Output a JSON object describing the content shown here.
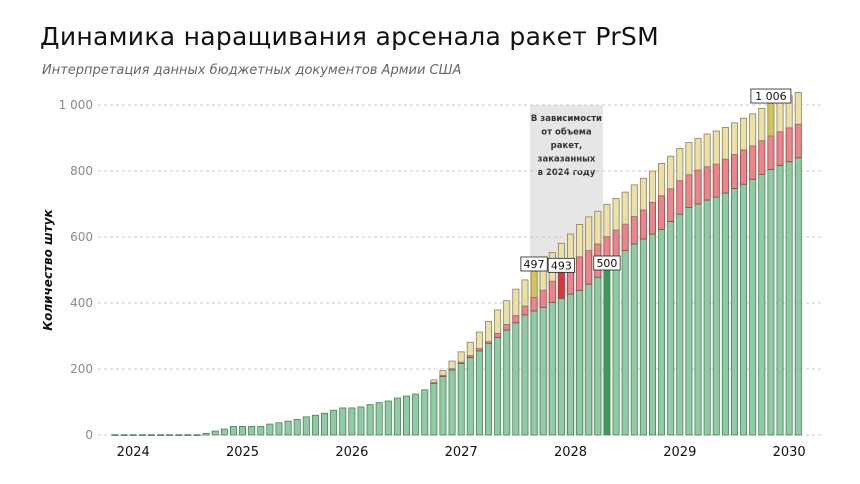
{
  "title": "Динамика наращивания арсенала ракет PrSM",
  "subtitle": "Интерпретация данных бюджетных документов Армии США",
  "chart_data": {
    "type": "bar",
    "stacked": true,
    "title": "Динамика наращивания арсенала ракет PrSM",
    "subtitle": "Интерпретация данных бюджетных документов Армии США",
    "xlabel": "",
    "ylabel": "Количество штук",
    "ylim": [
      0,
      1050
    ],
    "yticks": [
      0,
      200,
      400,
      600,
      800,
      1000
    ],
    "ytick_labels": [
      "0",
      "200",
      "400",
      "600",
      "800",
      "1 000"
    ],
    "grid": "horizontal dashed",
    "legend": "none",
    "year_labels": [
      "2024",
      "2025",
      "2026",
      "2027",
      "2028",
      "2029",
      "2030"
    ],
    "x": [
      "2024-01",
      "2024-02",
      "2024-03",
      "2024-04",
      "2024-05",
      "2024-06",
      "2024-07",
      "2024-08",
      "2024-09",
      "2024-10",
      "2024-11",
      "2024-12",
      "2025-01",
      "2025-02",
      "2025-03",
      "2025-04",
      "2025-05",
      "2025-06",
      "2025-07",
      "2025-08",
      "2025-09",
      "2025-10",
      "2025-11",
      "2025-12",
      "2026-01",
      "2026-02",
      "2026-03",
      "2026-04",
      "2026-05",
      "2026-06",
      "2026-07",
      "2026-08",
      "2026-09",
      "2026-10",
      "2026-11",
      "2026-12",
      "2027-01",
      "2027-02",
      "2027-03",
      "2027-04",
      "2027-05",
      "2027-06",
      "2027-07",
      "2027-08",
      "2027-09",
      "2027-10",
      "2027-11",
      "2027-12",
      "2028-01",
      "2028-02",
      "2028-03",
      "2028-04",
      "2028-05",
      "2028-06",
      "2028-07",
      "2028-08",
      "2028-09",
      "2028-10",
      "2028-11",
      "2028-12",
      "2029-01",
      "2029-02",
      "2029-03",
      "2029-04",
      "2029-05",
      "2029-06",
      "2029-07",
      "2029-08",
      "2029-09",
      "2029-10",
      "2029-11",
      "2029-12",
      "2030-01",
      "2030-02",
      "2030-03",
      "2030-04"
    ],
    "series": [
      {
        "color": "#8fcca3",
        "stroke": "#4f7d5c",
        "highlight": "#3d9a57",
        "values": [
          1,
          1,
          1,
          1,
          1,
          1,
          1,
          1,
          1,
          1,
          5,
          12,
          18,
          26,
          26,
          26,
          26,
          33,
          37,
          42,
          47,
          55,
          60,
          66,
          75,
          82,
          82,
          85,
          92,
          98,
          103,
          112,
          118,
          124,
          137,
          157,
          177,
          197,
          217,
          235,
          255,
          278,
          296,
          318,
          340,
          364,
          376,
          387,
          402,
          414,
          427,
          438,
          457,
          478,
          500,
          535,
          559,
          579,
          594,
          609,
          623,
          647,
          669,
          689,
          700,
          712,
          721,
          733,
          747,
          760,
          775,
          790,
          805,
          817,
          828,
          840
        ]
      },
      {
        "color": "#e8868b",
        "stroke": "#8b4646",
        "highlight": "#e2313f",
        "values": [
          0,
          0,
          0,
          0,
          0,
          0,
          0,
          0,
          0,
          0,
          0,
          0,
          0,
          0,
          0,
          0,
          0,
          0,
          0,
          0,
          0,
          0,
          0,
          0,
          0,
          0,
          0,
          0,
          0,
          0,
          0,
          0,
          0,
          0,
          0,
          2,
          4,
          4,
          4,
          6,
          7,
          5,
          12,
          17,
          22,
          27,
          41,
          52,
          64,
          79,
          88,
          102,
          102,
          101,
          101,
          86,
          80,
          83,
          88,
          96,
          102,
          99,
          102,
          100,
          103,
          101,
          100,
          103,
          103,
          104,
          101,
          102,
          101,
          102,
          103,
          102
        ]
      },
      {
        "color": "#ece0a6",
        "stroke": "#8a8062",
        "highlight": "#d2c455",
        "values": [
          0,
          0,
          0,
          0,
          0,
          0,
          0,
          0,
          0,
          0,
          0,
          0,
          0,
          0,
          0,
          0,
          0,
          0,
          0,
          0,
          0,
          0,
          0,
          0,
          0,
          0,
          0,
          0,
          0,
          0,
          0,
          0,
          0,
          0,
          0,
          8,
          14,
          23,
          31,
          40,
          50,
          61,
          71,
          72,
          80,
          79,
          80,
          86,
          87,
          88,
          94,
          98,
          102,
          99,
          98,
          96,
          97,
          96,
          96,
          95,
          98,
          99,
          97,
          97,
          96,
          99,
          100,
          96,
          96,
          96,
          97,
          98,
          100,
          99,
          97,
          96
        ]
      }
    ],
    "highlights": [
      {
        "x": "2027-11",
        "series": 2,
        "label": "497"
      },
      {
        "x": "2028-02",
        "series": 1,
        "label": "493"
      },
      {
        "x": "2028-07",
        "series": 0,
        "label": "500"
      },
      {
        "x": "2030-01",
        "series": 2,
        "label": "1 006"
      }
    ],
    "shaded_range": {
      "from": "2027-11",
      "to": "2028-06",
      "color": "#e6e6e6",
      "text": [
        "В зависимости",
        "от объема",
        "ракет,",
        "заказанных",
        "в 2024 году"
      ]
    }
  }
}
